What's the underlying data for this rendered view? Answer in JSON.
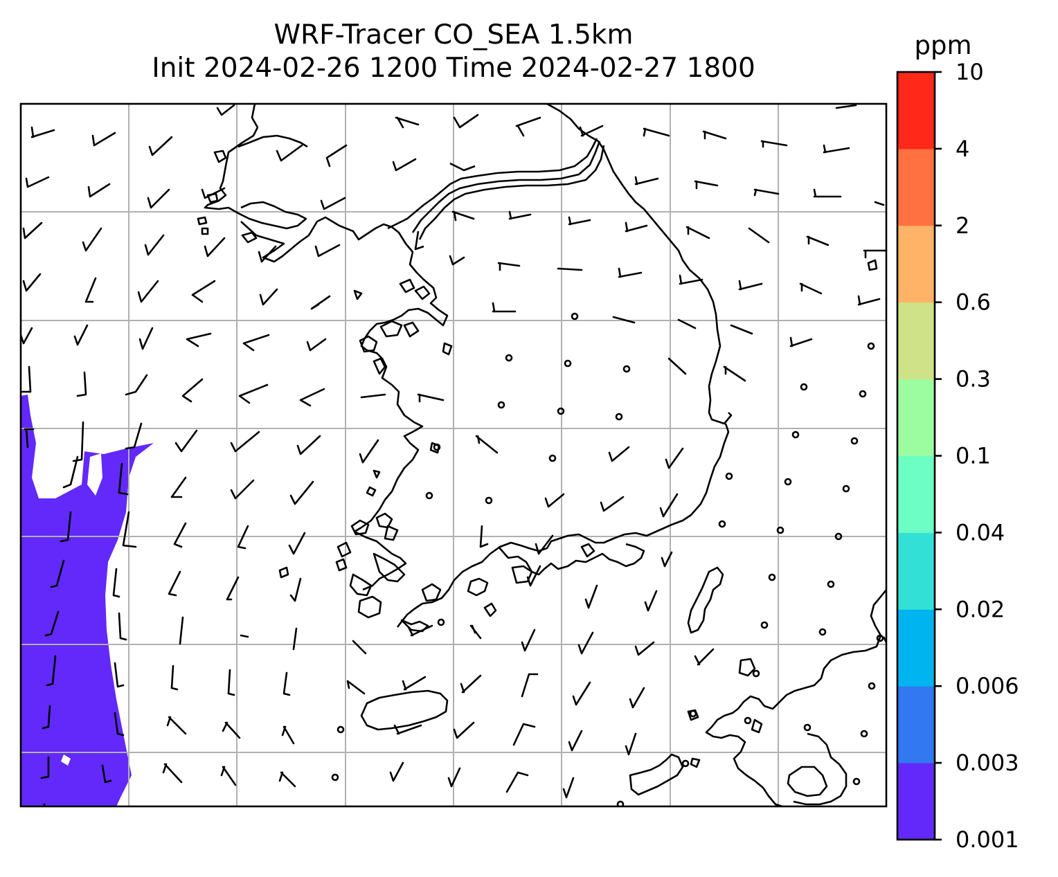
{
  "title": {
    "line1": "WRF-Tracer CO_SEA 1.5km",
    "line2": "Init 2024-02-26 1200 Time 2024-02-27 1800"
  },
  "colorbar": {
    "unit": "ppm",
    "levels": [
      "0.001",
      "0.003",
      "0.006",
      "0.02",
      "0.04",
      "0.1",
      "0.3",
      "0.6",
      "2",
      "4",
      "10"
    ],
    "colors": [
      "#6229fa",
      "#3178f1",
      "#00b4ef",
      "#32e0d6",
      "#6cfec4",
      "#9bfda0",
      "#cfe287",
      "#feb366",
      "#ff7141",
      "#ff2819"
    ]
  },
  "map": {
    "field_color": "#6229fa",
    "gridline_color": "#b0b0b0",
    "coastline_color": "#000000"
  }
}
